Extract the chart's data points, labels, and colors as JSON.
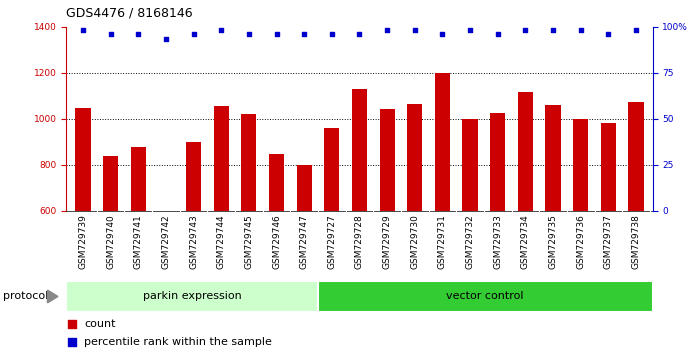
{
  "title": "GDS4476 / 8168146",
  "samples": [
    "GSM729739",
    "GSM729740",
    "GSM729741",
    "GSM729742",
    "GSM729743",
    "GSM729744",
    "GSM729745",
    "GSM729746",
    "GSM729747",
    "GSM729727",
    "GSM729728",
    "GSM729729",
    "GSM729730",
    "GSM729731",
    "GSM729732",
    "GSM729733",
    "GSM729734",
    "GSM729735",
    "GSM729736",
    "GSM729737",
    "GSM729738"
  ],
  "counts": [
    1048,
    838,
    878,
    0,
    898,
    1055,
    1020,
    848,
    800,
    958,
    1130,
    1040,
    1065,
    1200,
    1000,
    1025,
    1115,
    1060,
    1000,
    980,
    1070
  ],
  "percentile_ranks": [
    98,
    96,
    96,
    93,
    96,
    98,
    96,
    96,
    96,
    96,
    96,
    98,
    98,
    96,
    98,
    96,
    98,
    98,
    98,
    96,
    98
  ],
  "ylim_left": [
    600,
    1400
  ],
  "ylim_right": [
    0,
    100
  ],
  "yticks_left": [
    600,
    800,
    1000,
    1200,
    1400
  ],
  "yticks_right": [
    0,
    25,
    50,
    75,
    100
  ],
  "ytick_labels_right": [
    "0",
    "25",
    "50",
    "75",
    "100%"
  ],
  "bar_color": "#cc0000",
  "dot_color": "#0000cc",
  "parkin_label": "parkin expression",
  "vector_label": "vector control",
  "parkin_color": "#ccffcc",
  "vector_color": "#33cc33",
  "protocol_label": "protocol",
  "legend_count_label": "count",
  "legend_pct_label": "percentile rank within the sample",
  "parkin_count": 9,
  "vector_count": 12,
  "bar_width": 0.55,
  "tick_fontsize": 6.5,
  "title_fontsize": 9,
  "axis_color_left": "#cc0000",
  "axis_color_right": "#0000cc",
  "grid_yticks": [
    800,
    1000,
    1200
  ],
  "sample_bg_color": "#cccccc",
  "sample_border_color": "#888888"
}
